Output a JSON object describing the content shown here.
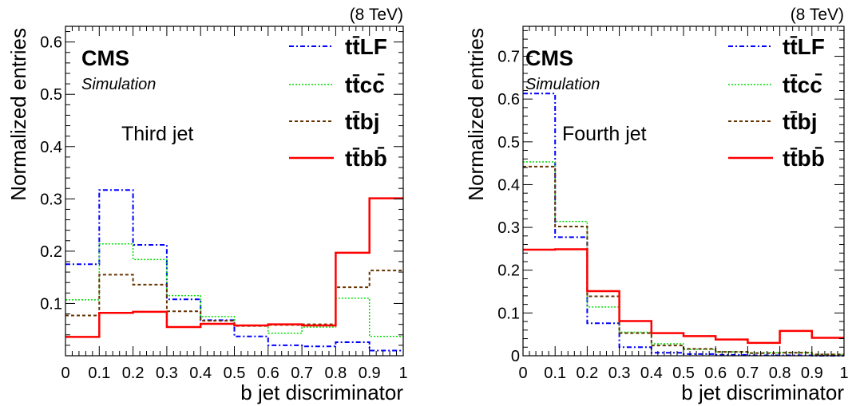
{
  "chart_data": [
    {
      "type": "histogram",
      "energy_label": "(8 TeV)",
      "experiment": "CMS",
      "subtitle": "Simulation",
      "annotation": "Third jet",
      "xlabel": "b jet discriminator",
      "ylabel": "Normalized entries",
      "xlim": [
        0,
        1
      ],
      "ylim": [
        0,
        0.63
      ],
      "x_ticks": [
        0,
        0.1,
        0.2,
        0.3,
        0.4,
        0.5,
        0.6,
        0.7,
        0.8,
        0.9,
        1
      ],
      "x_tick_labels": [
        "0",
        "0.1",
        "0.2",
        "0.3",
        "0.4",
        "0.5",
        "0.6",
        "0.7",
        "0.8",
        "0.9",
        "1"
      ],
      "y_ticks": [
        0.1,
        0.2,
        0.3,
        0.4,
        0.5,
        0.6
      ],
      "y_tick_labels": [
        "0.1",
        "0.2",
        "0.3",
        "0.4",
        "0.5",
        "0.6"
      ],
      "bin_edges": [
        0,
        0.1,
        0.2,
        0.3,
        0.4,
        0.5,
        0.6,
        0.7,
        0.8,
        0.9,
        1
      ],
      "legend_position": "top-right",
      "series": [
        {
          "name": "tt̄LF",
          "color": "#0000ff",
          "style": "dash-dot",
          "values": [
            0.175,
            0.317,
            0.212,
            0.108,
            0.068,
            0.037,
            0.02,
            0.018,
            0.026,
            0.01
          ]
        },
        {
          "name": "tt̄cc̄",
          "color": "#00dd00",
          "style": "dotted",
          "values": [
            0.107,
            0.214,
            0.184,
            0.115,
            0.075,
            0.058,
            0.043,
            0.055,
            0.11,
            0.037
          ]
        },
        {
          "name": "tt̄bj",
          "color": "#663300",
          "style": "dashed",
          "values": [
            0.077,
            0.155,
            0.136,
            0.085,
            0.067,
            0.057,
            0.059,
            0.06,
            0.131,
            0.163
          ]
        },
        {
          "name": "tt̄bb̄",
          "color": "#ff0000",
          "style": "solid",
          "values": [
            0.036,
            0.082,
            0.084,
            0.055,
            0.061,
            0.058,
            0.06,
            0.058,
            0.197,
            0.301
          ]
        }
      ]
    },
    {
      "type": "histogram",
      "energy_label": "(8 TeV)",
      "experiment": "CMS",
      "subtitle": "Simulation",
      "annotation": "Fourth jet",
      "xlabel": "b jet discriminator",
      "ylabel": "Normalized entries",
      "xlim": [
        0,
        1
      ],
      "ylim": [
        0,
        0.77
      ],
      "x_ticks": [
        0,
        0.1,
        0.2,
        0.3,
        0.4,
        0.5,
        0.6,
        0.7,
        0.8,
        0.9,
        1
      ],
      "x_tick_labels": [
        "0",
        "0.1",
        "0.2",
        "0.3",
        "0.4",
        "0.5",
        "0.6",
        "0.7",
        "0.8",
        "0.9",
        "1"
      ],
      "y_ticks": [
        0,
        0.1,
        0.2,
        0.3,
        0.4,
        0.5,
        0.6,
        0.7
      ],
      "y_tick_labels": [
        "0",
        "0.1",
        "0.2",
        "0.3",
        "0.4",
        "0.5",
        "0.6",
        "0.7"
      ],
      "bin_edges": [
        0,
        0.1,
        0.2,
        0.3,
        0.4,
        0.5,
        0.6,
        0.7,
        0.8,
        0.9,
        1
      ],
      "legend_position": "top-right",
      "series": [
        {
          "name": "tt̄LF",
          "color": "#0000ff",
          "style": "dash-dot",
          "values": [
            0.613,
            0.277,
            0.076,
            0.02,
            0.007,
            0.004,
            0.002,
            0.001,
            0.001,
            0.0
          ]
        },
        {
          "name": "tt̄cc̄",
          "color": "#00dd00",
          "style": "dotted",
          "values": [
            0.453,
            0.314,
            0.114,
            0.055,
            0.028,
            0.015,
            0.009,
            0.007,
            0.008,
            0.003
          ]
        },
        {
          "name": "tt̄bj",
          "color": "#663300",
          "style": "dashed",
          "values": [
            0.442,
            0.302,
            0.139,
            0.053,
            0.024,
            0.016,
            0.009,
            0.006,
            0.007,
            0.003
          ]
        },
        {
          "name": "tt̄bb̄",
          "color": "#ff0000",
          "style": "solid",
          "values": [
            0.248,
            0.249,
            0.151,
            0.081,
            0.053,
            0.046,
            0.038,
            0.03,
            0.058,
            0.042
          ]
        }
      ]
    }
  ]
}
